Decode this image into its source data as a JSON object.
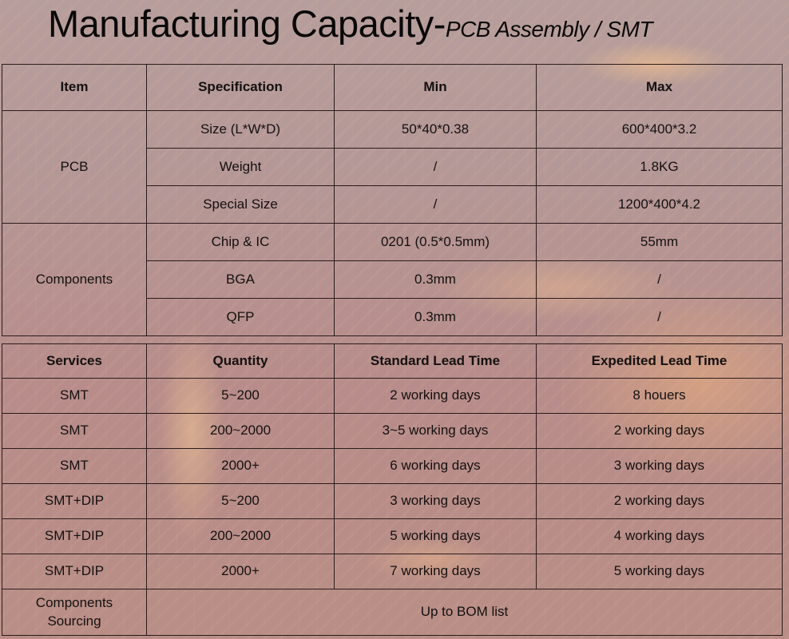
{
  "title": {
    "main": "Manufacturing Capacity-",
    "sub": "PCB Assembly / SMT"
  },
  "capacity_table": {
    "headers": [
      "Item",
      "Specification",
      "Min",
      "Max"
    ],
    "groups": [
      {
        "item": "PCB",
        "rows": [
          {
            "spec": "Size (L*W*D)",
            "min": "50*40*0.38",
            "max": "600*400*3.2"
          },
          {
            "spec": "Weight",
            "min": "/",
            "max": "1.8KG"
          },
          {
            "spec": "Special Size",
            "min": "/",
            "max": "1200*400*4.2"
          }
        ]
      },
      {
        "item": "Components",
        "rows": [
          {
            "spec": "Chip & IC",
            "min": "0201 (0.5*0.5mm)",
            "max": "55mm"
          },
          {
            "spec": "BGA",
            "min": "0.3mm",
            "max": "/"
          },
          {
            "spec": "QFP",
            "min": "0.3mm",
            "max": "/"
          }
        ]
      }
    ]
  },
  "lead_time_table": {
    "headers": [
      "Services",
      "Quantity",
      "Standard Lead Time",
      "Expedited Lead  Time"
    ],
    "rows": [
      {
        "service": "SMT",
        "quantity": "5~200",
        "standard": "2 working days",
        "expedited": "8 houers"
      },
      {
        "service": "SMT",
        "quantity": "200~2000",
        "standard": "3~5 working days",
        "expedited": "2 working days"
      },
      {
        "service": "SMT",
        "quantity": "2000+",
        "standard": "6 working days",
        "expedited": "3 working days"
      },
      {
        "service": "SMT+DIP",
        "quantity": "5~200",
        "standard": "3 working days",
        "expedited": "2 working days"
      },
      {
        "service": "SMT+DIP",
        "quantity": "200~2000",
        "standard": "5 working days",
        "expedited": "4 working days"
      },
      {
        "service": "SMT+DIP",
        "quantity": "2000+",
        "standard": "7 working days",
        "expedited": "5 working days"
      }
    ],
    "sourcing": {
      "service": "Components Sourcing",
      "value": "Up to BOM list"
    }
  },
  "colors": {
    "background": "#b69a98",
    "border": "#2a1c1c",
    "text": "#141010",
    "glow": "#ffc88c"
  }
}
